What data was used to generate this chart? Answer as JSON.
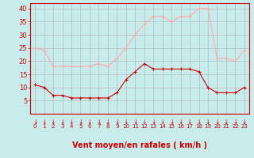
{
  "hours": [
    0,
    1,
    2,
    3,
    4,
    5,
    6,
    7,
    8,
    9,
    10,
    11,
    12,
    13,
    14,
    15,
    16,
    17,
    18,
    19,
    20,
    21,
    22,
    23
  ],
  "wind_avg": [
    11,
    10,
    7,
    7,
    6,
    6,
    6,
    6,
    6,
    8,
    13,
    16,
    19,
    17,
    17,
    17,
    17,
    17,
    16,
    10,
    8,
    8,
    8,
    10
  ],
  "wind_gust": [
    25,
    24,
    18,
    18,
    18,
    18,
    18,
    19,
    18,
    21,
    25,
    30,
    34,
    37,
    37,
    35,
    37,
    37,
    40,
    40,
    21,
    21,
    20,
    24
  ],
  "avg_color": "#cc0000",
  "gust_color": "#ffaaaa",
  "bg_color": "#c8ecec",
  "grid_color": "#aaaaaa",
  "xlabel": "Vent moyen/en rafales ( km/h )",
  "ylabel_ticks": [
    5,
    10,
    15,
    20,
    25,
    30,
    35,
    40
  ],
  "ylim": [
    0,
    42
  ],
  "xlim": [
    -0.5,
    23.5
  ]
}
